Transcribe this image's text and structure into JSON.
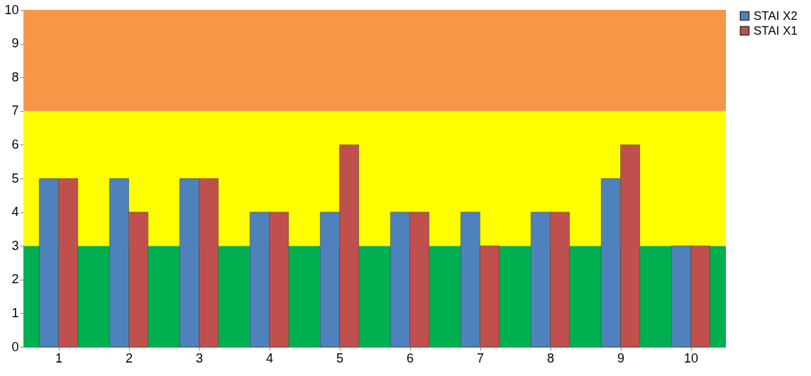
{
  "chart_data": {
    "type": "bar",
    "categories": [
      "1",
      "2",
      "3",
      "4",
      "5",
      "6",
      "7",
      "8",
      "9",
      "10"
    ],
    "series": [
      {
        "name": "STAI X2",
        "color": "#4f81bd",
        "values": [
          5,
          5,
          5,
          4,
          4,
          4,
          4,
          4,
          5,
          3
        ]
      },
      {
        "name": "STAI X1",
        "color": "#c0504d",
        "values": [
          5,
          4,
          5,
          4,
          6,
          4,
          3,
          4,
          6,
          3
        ]
      }
    ],
    "ylim": [
      0,
      10
    ],
    "yticks": [
      0,
      1,
      2,
      3,
      4,
      5,
      6,
      7,
      8,
      9,
      10
    ],
    "legend": "right",
    "bands": [
      {
        "axis": "y",
        "from": 0,
        "to": 3,
        "color": "#00b050"
      },
      {
        "axis": "y",
        "from": 3,
        "to": 7,
        "color": "#ffff00"
      },
      {
        "axis": "y",
        "from": 7,
        "to": 10,
        "color": "#f79646"
      }
    ]
  }
}
